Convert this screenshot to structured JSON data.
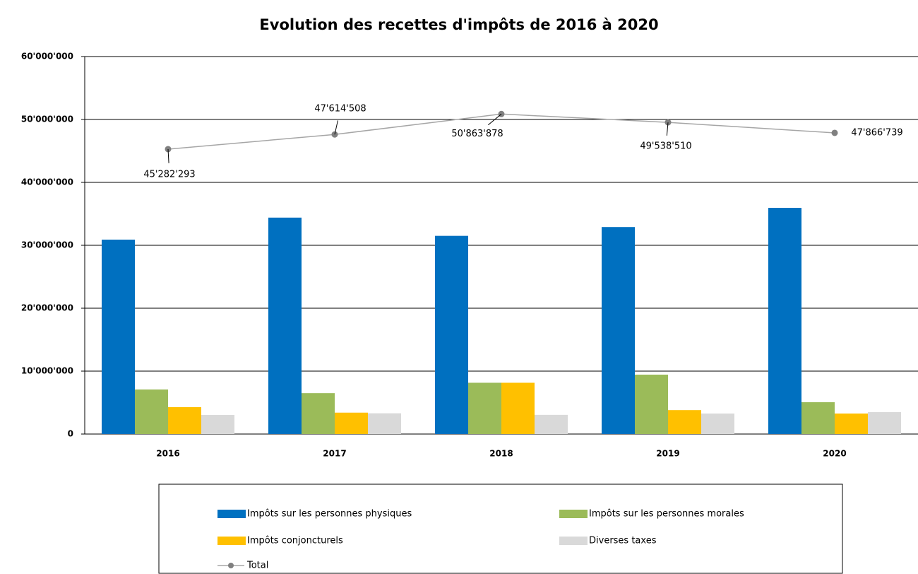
{
  "chart_data": {
    "type": "bar",
    "title": "Evolution des recettes d'impôts de 2016 à 2020",
    "categories": [
      "2016",
      "2017",
      "2018",
      "2019",
      "2020"
    ],
    "series": [
      {
        "name": "Impôts sur les personnes physiques",
        "color": "#0070c0",
        "values": [
          30900000,
          34400000,
          31500000,
          32900000,
          35950000
        ]
      },
      {
        "name": "Impôts sur les personnes morales",
        "color": "#9bbb59",
        "values": [
          7080000,
          6500000,
          8150000,
          9440000,
          5060000
        ]
      },
      {
        "name": "Impôts conjoncturels",
        "color": "#ffc000",
        "values": [
          4270000,
          3400000,
          8150000,
          3800000,
          3260000
        ]
      },
      {
        "name": "Diverses taxes",
        "color": "#d9d9d9",
        "values": [
          3030000,
          3300000,
          3050000,
          3260000,
          3480000
        ]
      },
      {
        "name": "Total",
        "type": "line",
        "color": "#a6a6a6",
        "marker_color": "#808080",
        "values": [
          45282293,
          47614508,
          50863878,
          49538510,
          47866739
        ],
        "value_labels": [
          "45'282'293",
          "47'614'508",
          "50'863'878",
          "49'538'510",
          "47'866'739"
        ]
      }
    ],
    "ylim": [
      0,
      60000000
    ],
    "yticks": [
      0,
      {
        "value": 10000000,
        "label": "10'000'000"
      },
      {
        "value": 20000000,
        "label": "20'000'000"
      },
      {
        "value": 30000000,
        "label": "30'000'000"
      },
      {
        "value": 40000000,
        "label": "40'000'000"
      },
      {
        "value": 50000000,
        "label": "50'000'000"
      },
      {
        "value": 60000000,
        "label": "60'000'000"
      }
    ],
    "grid": true,
    "legend": "bottom"
  }
}
